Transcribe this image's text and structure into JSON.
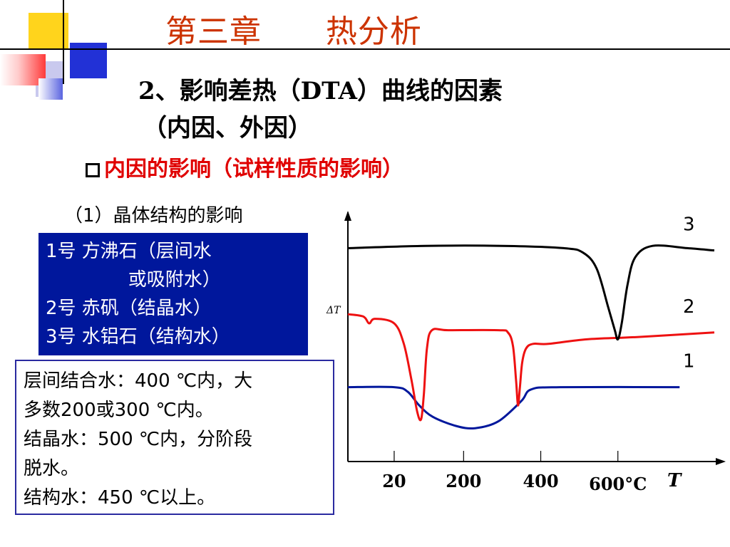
{
  "title": "第三章      热分析",
  "subtitle_line1": "2、影响差热（DTA）曲线的因素",
  "subtitle_line2": "（内因、外因）",
  "section_heading": "内因的影响（试样性质的影响）",
  "item_heading": "（1）晶体结构的影响",
  "legend_box": {
    "lines": [
      "1号  方沸石（层间水",
      "              或吸附水）",
      "2号  赤矾（结晶水）",
      "3号  水铝石（结构水）"
    ]
  },
  "notes": {
    "lines": [
      "层间结合水：400 ℃内，大",
      "多数200或300 ℃内。",
      "结晶水：500 ℃内，分阶段",
      "脱水。",
      "结构水：450 ℃以上。"
    ]
  },
  "colors": {
    "title": "#cc3300",
    "heading_red": "#e00000",
    "legend_bg": "#00179c",
    "curve1": "#00179c",
    "curve2": "#ee1111",
    "curve3": "#000000"
  },
  "chart_data": {
    "type": "line",
    "ylabel": "ΔT",
    "xlabel": "T",
    "x_unit": "600°C",
    "x_ticks": [
      {
        "value": 20,
        "label": "20"
      },
      {
        "value": 200,
        "label": "200"
      },
      {
        "value": 400,
        "label": "400"
      },
      {
        "value": 600,
        "label": "600°C"
      }
    ],
    "xlim": [
      -100,
      850
    ],
    "ylim": [
      0,
      100
    ],
    "series": [
      {
        "name": "1",
        "color": "#00179c",
        "points": [
          [
            -100,
            27
          ],
          [
            20,
            27
          ],
          [
            55,
            25
          ],
          [
            85,
            19
          ],
          [
            120,
            14
          ],
          [
            180,
            10
          ],
          [
            230,
            9
          ],
          [
            290,
            12
          ],
          [
            350,
            21
          ],
          [
            375,
            26
          ],
          [
            450,
            27
          ],
          [
            760,
            27
          ]
        ]
      },
      {
        "name": "2",
        "color": "#ee1111",
        "points": [
          [
            -100,
            59
          ],
          [
            -60,
            58
          ],
          [
            -45,
            55
          ],
          [
            -30,
            57
          ],
          [
            20,
            55
          ],
          [
            45,
            46
          ],
          [
            65,
            30
          ],
          [
            80,
            16
          ],
          [
            90,
            13
          ],
          [
            97,
            24
          ],
          [
            105,
            44
          ],
          [
            118,
            52
          ],
          [
            160,
            52
          ],
          [
            290,
            52
          ],
          [
            315,
            51
          ],
          [
            328,
            45
          ],
          [
            336,
            30
          ],
          [
            341,
            19
          ],
          [
            346,
            27
          ],
          [
            352,
            38
          ],
          [
            362,
            44
          ],
          [
            380,
            46
          ],
          [
            420,
            46
          ],
          [
            520,
            48
          ],
          [
            650,
            49
          ],
          [
            850,
            51
          ]
        ]
      },
      {
        "name": "3",
        "color": "#000000",
        "points": [
          [
            -100,
            88
          ],
          [
            100,
            89
          ],
          [
            300,
            89
          ],
          [
            460,
            88
          ],
          [
            510,
            86
          ],
          [
            545,
            79
          ],
          [
            575,
            62
          ],
          [
            592,
            52
          ],
          [
            600,
            48
          ],
          [
            610,
            55
          ],
          [
            625,
            72
          ],
          [
            645,
            84
          ],
          [
            690,
            89
          ],
          [
            780,
            88
          ],
          [
            850,
            87
          ]
        ]
      }
    ]
  }
}
